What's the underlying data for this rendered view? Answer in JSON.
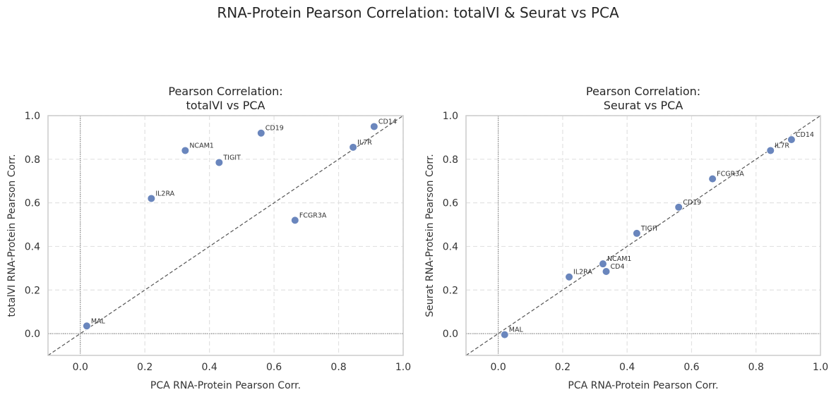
{
  "figure": {
    "suptitle": "RNA-Protein Pearson Correlation: totalVI & Seurat vs PCA"
  },
  "chart_data": [
    {
      "type": "scatter",
      "title": "Pearson Correlation:\ntotalVI vs PCA",
      "xlabel": "PCA RNA-Protein Pearson Corr.",
      "ylabel": "totalVI RNA-Protein Pearson Corr.",
      "xlim": [
        -0.1,
        1.0
      ],
      "ylim": [
        -0.1,
        1.0
      ],
      "xticks": [
        "0.0",
        "0.2",
        "0.4",
        "0.6",
        "0.8",
        "1.0"
      ],
      "yticks": [
        "0.0",
        "0.2",
        "0.4",
        "0.6",
        "0.8",
        "1.0"
      ],
      "grid": true,
      "reference_line": "y = x",
      "points": [
        {
          "label": "MAL",
          "x": 0.02,
          "y": 0.035
        },
        {
          "label": "IL2RA",
          "x": 0.22,
          "y": 0.62
        },
        {
          "label": "NCAM1",
          "x": 0.325,
          "y": 0.84
        },
        {
          "label": "TIGIT",
          "x": 0.43,
          "y": 0.785
        },
        {
          "label": "CD19",
          "x": 0.56,
          "y": 0.92
        },
        {
          "label": "FCGR3A",
          "x": 0.665,
          "y": 0.52
        },
        {
          "label": "IL7R",
          "x": 0.845,
          "y": 0.855
        },
        {
          "label": "CD14",
          "x": 0.91,
          "y": 0.95
        }
      ]
    },
    {
      "type": "scatter",
      "title": "Pearson Correlation:\nSeurat vs PCA",
      "xlabel": "PCA RNA-Protein Pearson Corr.",
      "ylabel": "Seurat RNA-Protein Pearson Corr.",
      "xlim": [
        -0.1,
        1.0
      ],
      "ylim": [
        -0.1,
        1.0
      ],
      "xticks": [
        "0.0",
        "0.2",
        "0.4",
        "0.6",
        "0.8",
        "1.0"
      ],
      "yticks": [
        "0.0",
        "0.2",
        "0.4",
        "0.6",
        "0.8",
        "1.0"
      ],
      "grid": true,
      "reference_line": "y = x",
      "points": [
        {
          "label": "MAL",
          "x": 0.02,
          "y": -0.005
        },
        {
          "label": "IL2RA",
          "x": 0.22,
          "y": 0.26
        },
        {
          "label": "NCAM1",
          "x": 0.325,
          "y": 0.32
        },
        {
          "label": "CD4",
          "x": 0.335,
          "y": 0.285
        },
        {
          "label": "TIGIT",
          "x": 0.43,
          "y": 0.46
        },
        {
          "label": "CD19",
          "x": 0.56,
          "y": 0.58
        },
        {
          "label": "FCGR3A",
          "x": 0.665,
          "y": 0.71
        },
        {
          "label": "IL7R",
          "x": 0.845,
          "y": 0.84
        },
        {
          "label": "CD14",
          "x": 0.91,
          "y": 0.89
        }
      ]
    }
  ],
  "style": {
    "marker_color": "#6a86bd",
    "marker_edge": "#ffffff",
    "grid_color": "#e2e2e2",
    "axis_color": "#cccccc",
    "diagonal_color": "#555555"
  }
}
